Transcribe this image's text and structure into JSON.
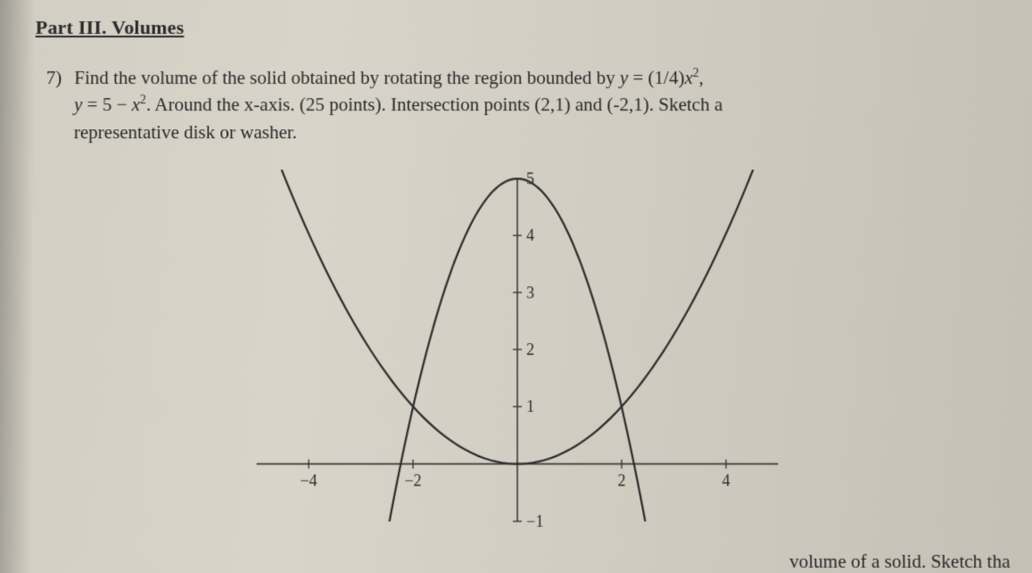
{
  "section": {
    "title": "Part III. Volumes"
  },
  "problem": {
    "number": "7)",
    "line1_a": "Find the volume of the solid obtained by rotating the region bounded by ",
    "eq1": "y = (1/4)x²,",
    "line2_a": "y = 5 − x². ",
    "line2_b": "Around the x-axis. (25 points). Intersection points (2,1) and (-2,1). Sketch a",
    "line3": "representative disk or washer."
  },
  "fragment": {
    "text": "volume of a solid. Sketch tha"
  },
  "chart": {
    "type": "line",
    "x_min": -5,
    "x_max": 5,
    "y_min": -1,
    "y_max": 5,
    "x_ticks": [
      -4,
      -2,
      2,
      4
    ],
    "y_ticks": [
      -1,
      1,
      2,
      3,
      4,
      5
    ],
    "axis_color": "#3a3a3a",
    "background_color": "transparent",
    "line_width": 2.2,
    "curves": [
      {
        "name": "quarter_parabola",
        "expr": "y = x^2 / 4",
        "x_range": [
          -5,
          5
        ],
        "color": "#2b2b2b"
      },
      {
        "name": "inverted_parabola",
        "expr": "y = 5 - x^2",
        "x_range": [
          -2.5,
          2.5
        ],
        "color": "#2b2b2b"
      }
    ]
  }
}
